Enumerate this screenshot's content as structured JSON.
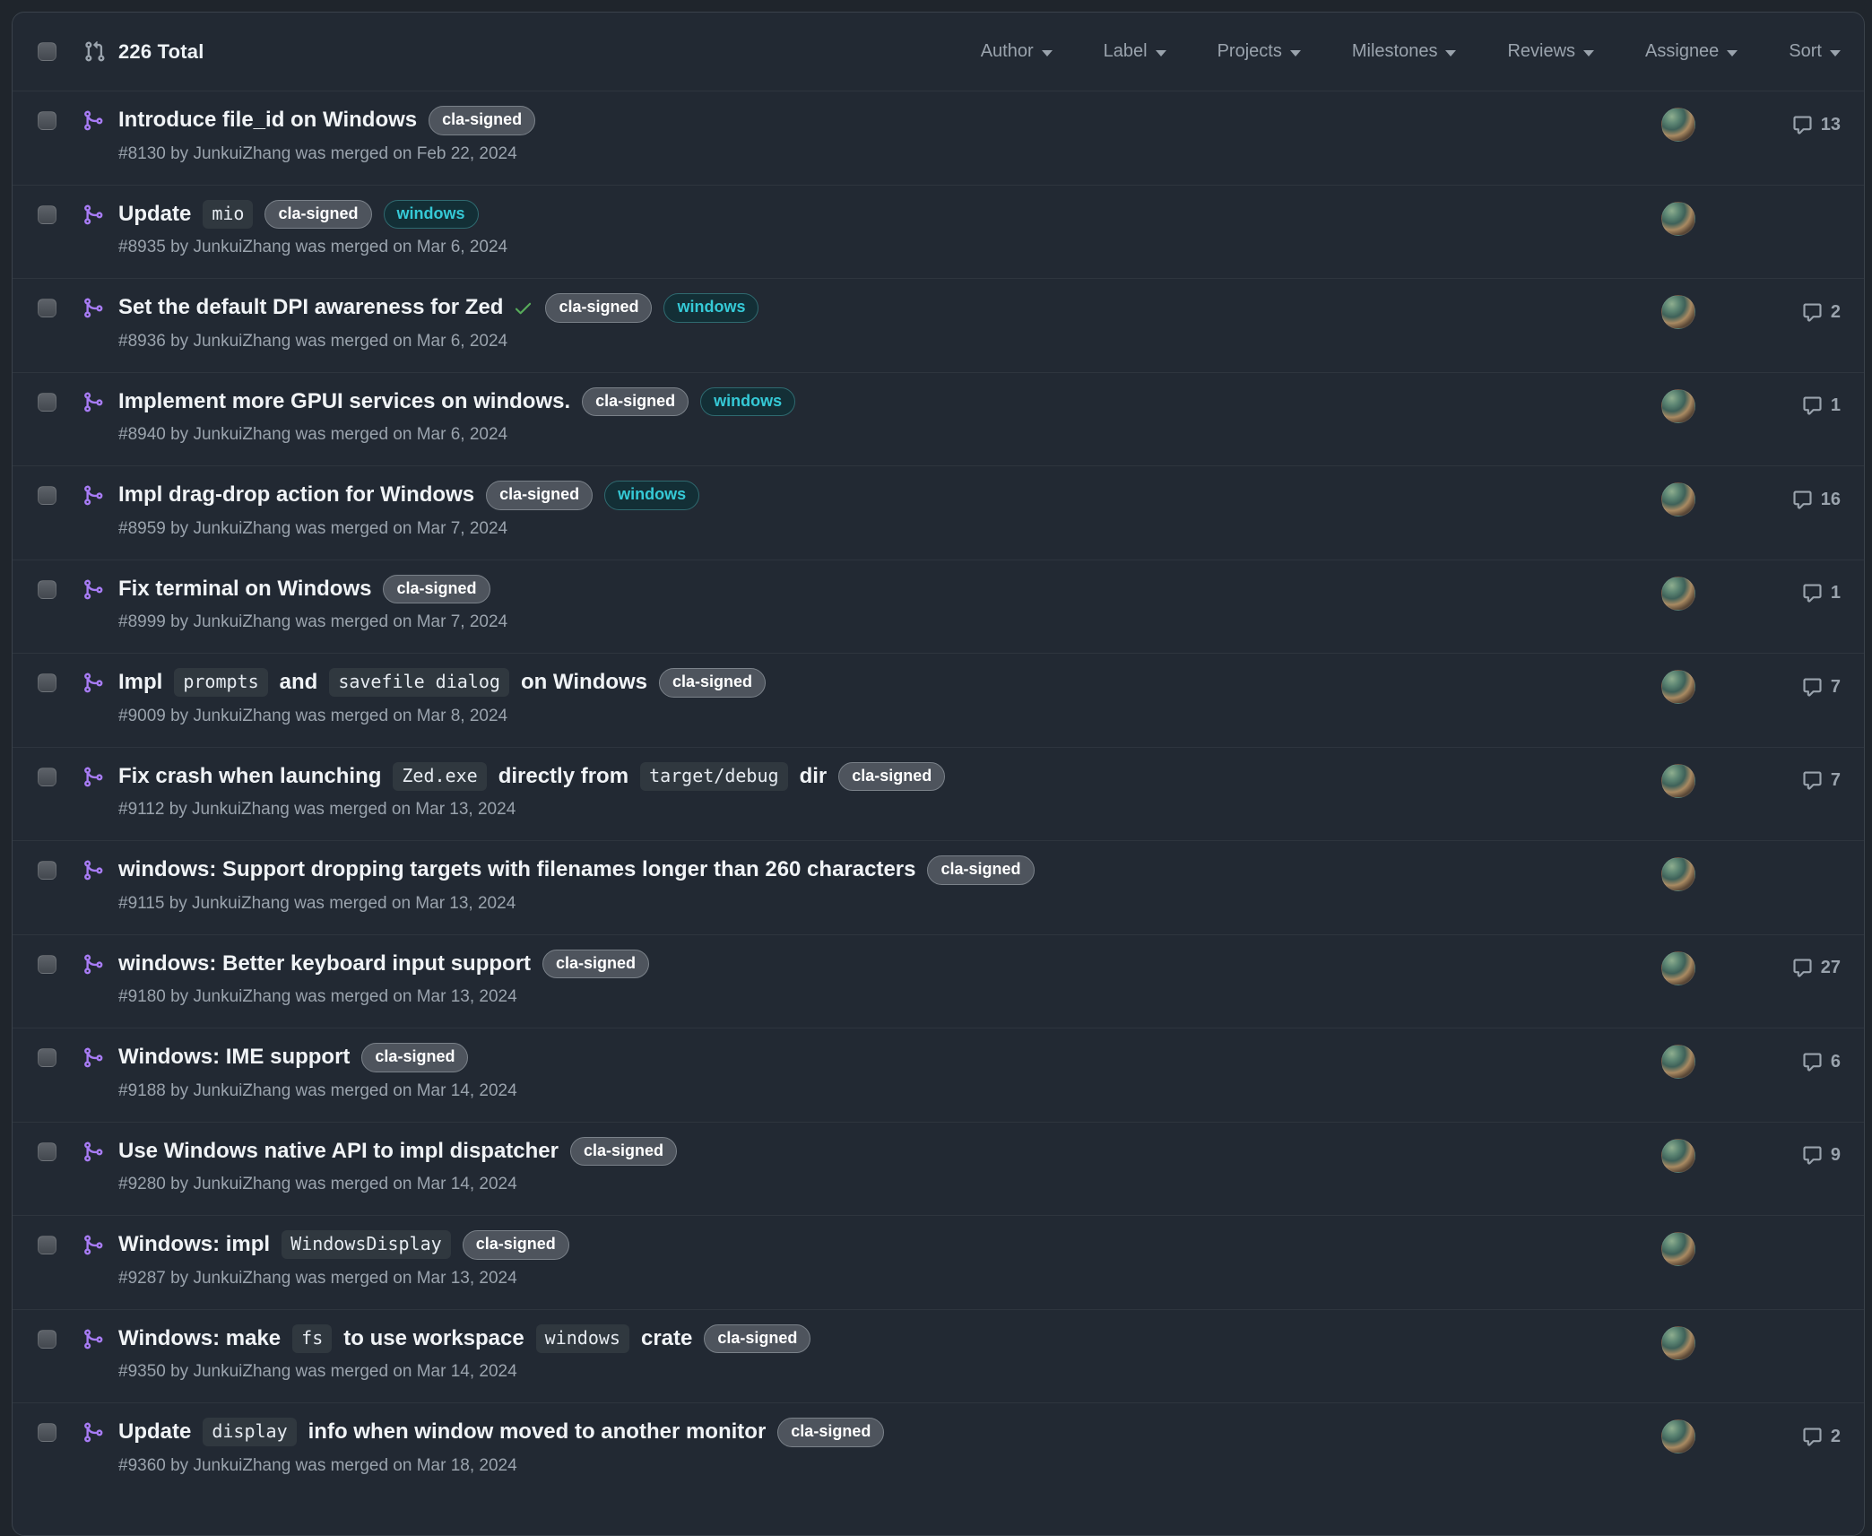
{
  "header": {
    "total_label": "226 Total",
    "filters": [
      {
        "label": "Author"
      },
      {
        "label": "Label"
      },
      {
        "label": "Projects"
      },
      {
        "label": "Milestones"
      },
      {
        "label": "Reviews"
      },
      {
        "label": "Assignee"
      },
      {
        "label": "Sort"
      }
    ]
  },
  "colors": {
    "page_background": "#1f252c",
    "panel_background": "#222933",
    "panel_border": "#3a424b",
    "row_separator": "#2e353e",
    "title_text": "#f0f3f6",
    "muted_text": "#9aa3ad",
    "merged_purple": "#a87cf5",
    "success_green": "#57ab5a",
    "code_background": "#30383f"
  },
  "list": {
    "author": "JunkuiZhang",
    "label_styles": {
      "cla-signed": {
        "bg": "#4e545d",
        "border": "#7a8189",
        "text": "#ffffff"
      },
      "windows": {
        "bg": "#132f36",
        "border": "#2f6a70",
        "text": "#35c9d6"
      }
    },
    "rows": [
      {
        "title_parts": [
          {
            "type": "text",
            "value": "Introduce file_id on Windows"
          }
        ],
        "check": false,
        "labels": [
          "cla-signed"
        ],
        "meta": "#8130 by JunkuiZhang was merged on Feb 22, 2024",
        "comments": 13
      },
      {
        "title_parts": [
          {
            "type": "text",
            "value": "Update"
          },
          {
            "type": "code",
            "value": "mio"
          }
        ],
        "check": false,
        "labels": [
          "cla-signed",
          "windows"
        ],
        "meta": "#8935 by JunkuiZhang was merged on Mar 6, 2024",
        "comments": null
      },
      {
        "title_parts": [
          {
            "type": "text",
            "value": "Set the default DPI awareness for Zed"
          }
        ],
        "check": true,
        "labels": [
          "cla-signed",
          "windows"
        ],
        "meta": "#8936 by JunkuiZhang was merged on Mar 6, 2024",
        "comments": 2
      },
      {
        "title_parts": [
          {
            "type": "text",
            "value": "Implement more GPUI services on windows."
          }
        ],
        "check": false,
        "labels": [
          "cla-signed",
          "windows"
        ],
        "meta": "#8940 by JunkuiZhang was merged on Mar 6, 2024",
        "comments": 1
      },
      {
        "title_parts": [
          {
            "type": "text",
            "value": "Impl drag-drop action for Windows"
          }
        ],
        "check": false,
        "labels": [
          "cla-signed",
          "windows"
        ],
        "meta": "#8959 by JunkuiZhang was merged on Mar 7, 2024",
        "comments": 16
      },
      {
        "title_parts": [
          {
            "type": "text",
            "value": "Fix terminal on Windows"
          }
        ],
        "check": false,
        "labels": [
          "cla-signed"
        ],
        "meta": "#8999 by JunkuiZhang was merged on Mar 7, 2024",
        "comments": 1
      },
      {
        "title_parts": [
          {
            "type": "text",
            "value": "Impl"
          },
          {
            "type": "code",
            "value": "prompts"
          },
          {
            "type": "text",
            "value": "and"
          },
          {
            "type": "code",
            "value": "savefile dialog"
          },
          {
            "type": "text",
            "value": "on Windows"
          }
        ],
        "check": false,
        "labels": [
          "cla-signed"
        ],
        "meta": "#9009 by JunkuiZhang was merged on Mar 8, 2024",
        "comments": 7
      },
      {
        "title_parts": [
          {
            "type": "text",
            "value": "Fix crash when launching"
          },
          {
            "type": "code",
            "value": "Zed.exe"
          },
          {
            "type": "text",
            "value": "directly from"
          },
          {
            "type": "code",
            "value": "target/debug"
          },
          {
            "type": "text",
            "value": "dir"
          }
        ],
        "check": false,
        "labels": [
          "cla-signed"
        ],
        "meta": "#9112 by JunkuiZhang was merged on Mar 13, 2024",
        "comments": 7
      },
      {
        "title_parts": [
          {
            "type": "text",
            "value": "windows: Support dropping targets with filenames longer than 260 characters"
          }
        ],
        "check": false,
        "labels": [
          "cla-signed"
        ],
        "meta": "#9115 by JunkuiZhang was merged on Mar 13, 2024",
        "comments": null
      },
      {
        "title_parts": [
          {
            "type": "text",
            "value": "windows: Better keyboard input support"
          }
        ],
        "check": false,
        "labels": [
          "cla-signed"
        ],
        "meta": "#9180 by JunkuiZhang was merged on Mar 13, 2024",
        "comments": 27
      },
      {
        "title_parts": [
          {
            "type": "text",
            "value": "Windows: IME support"
          }
        ],
        "check": false,
        "labels": [
          "cla-signed"
        ],
        "meta": "#9188 by JunkuiZhang was merged on Mar 14, 2024",
        "comments": 6
      },
      {
        "title_parts": [
          {
            "type": "text",
            "value": "Use Windows native API to impl dispatcher"
          }
        ],
        "check": false,
        "labels": [
          "cla-signed"
        ],
        "meta": "#9280 by JunkuiZhang was merged on Mar 14, 2024",
        "comments": 9
      },
      {
        "title_parts": [
          {
            "type": "text",
            "value": "Windows: impl"
          },
          {
            "type": "code",
            "value": "WindowsDisplay"
          }
        ],
        "check": false,
        "labels": [
          "cla-signed"
        ],
        "meta": "#9287 by JunkuiZhang was merged on Mar 13, 2024",
        "comments": null
      },
      {
        "title_parts": [
          {
            "type": "text",
            "value": "Windows: make"
          },
          {
            "type": "code",
            "value": "fs"
          },
          {
            "type": "text",
            "value": "to use workspace"
          },
          {
            "type": "code",
            "value": "windows"
          },
          {
            "type": "text",
            "value": "crate"
          }
        ],
        "check": false,
        "labels": [
          "cla-signed"
        ],
        "meta": "#9350 by JunkuiZhang was merged on Mar 14, 2024",
        "comments": null
      },
      {
        "title_parts": [
          {
            "type": "text",
            "value": "Update"
          },
          {
            "type": "code",
            "value": "display"
          },
          {
            "type": "text",
            "value": "info when window moved to another monitor"
          }
        ],
        "check": false,
        "labels": [
          "cla-signed"
        ],
        "meta": "#9360 by JunkuiZhang was merged on Mar 18, 2024",
        "comments": 2
      }
    ]
  }
}
